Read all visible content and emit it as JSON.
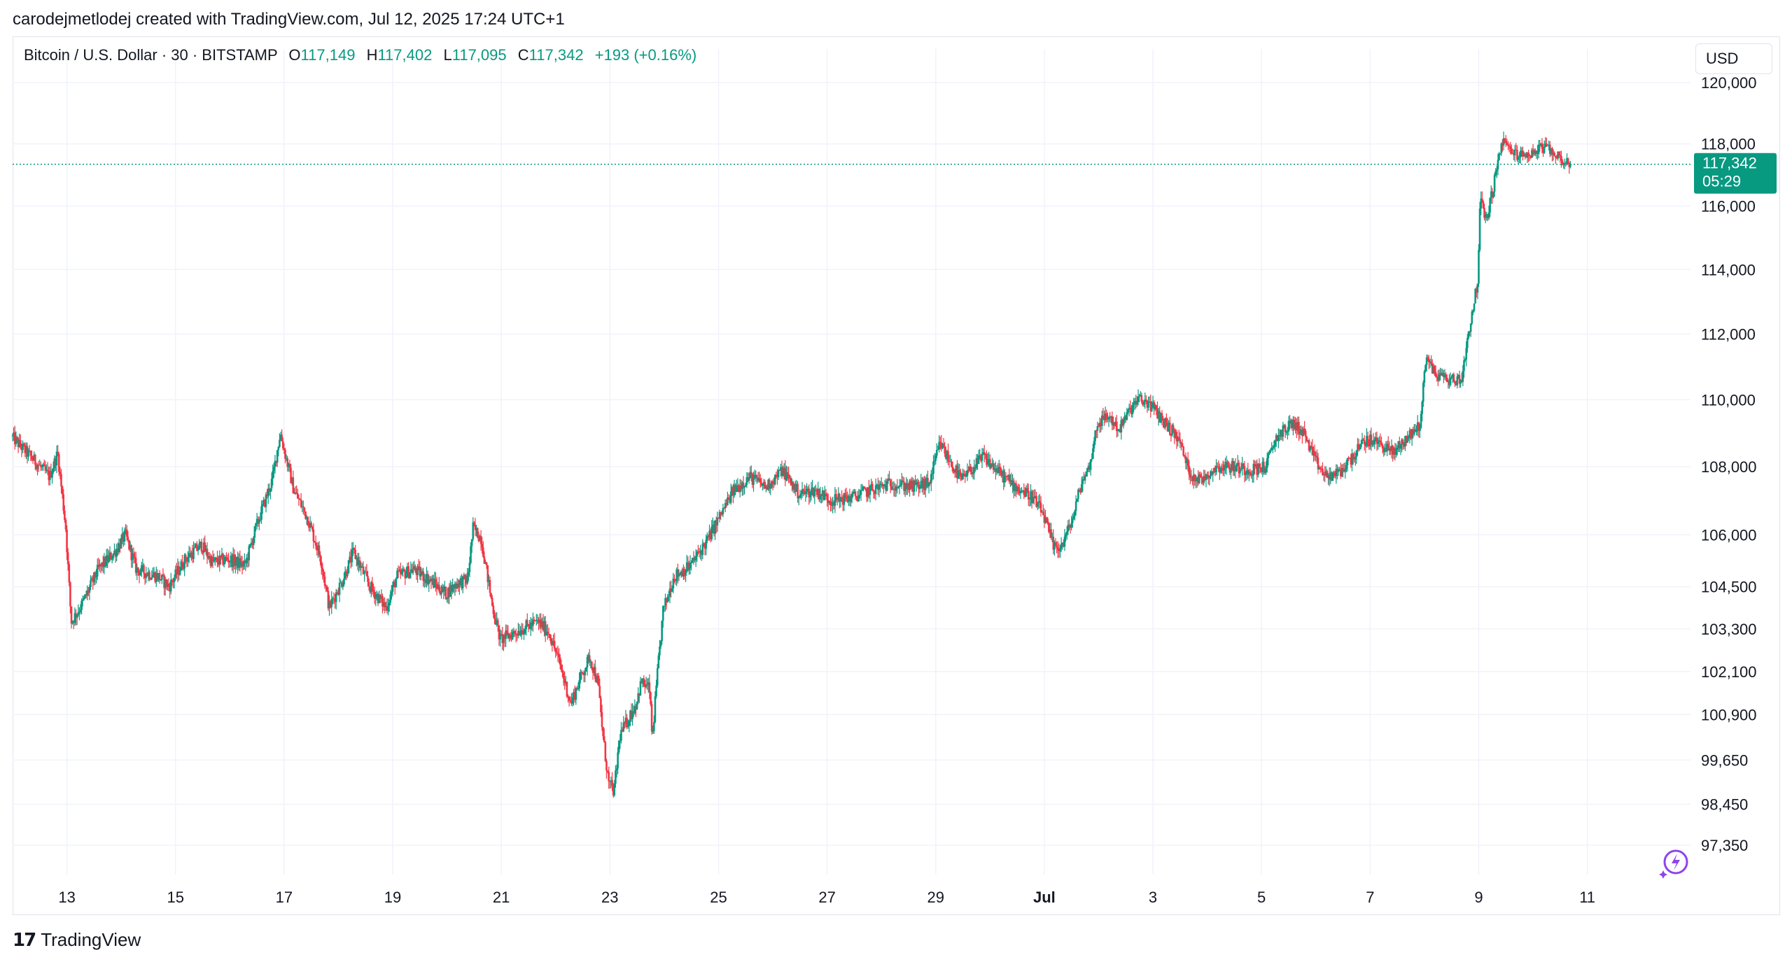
{
  "header": {
    "caption": "carodejmetlodej created with TradingView.com, Jul 12, 2025 17:24 UTC+1"
  },
  "legend": {
    "symbol": "Bitcoin / U.S. Dollar · 30 · BITSTAMP",
    "open_label": "O",
    "open": "117,149",
    "high_label": "H",
    "high": "117,402",
    "low_label": "L",
    "low": "117,095",
    "close_label": "C",
    "close": "117,342",
    "change": "+193 (+0.16%)"
  },
  "currency": "USD",
  "price_tag": {
    "price": "117,342",
    "countdown": "05:29"
  },
  "footer": {
    "brand": "TradingView"
  },
  "colors": {
    "up": "#089981",
    "down": "#f23645",
    "grid": "#f0f3fa",
    "accent": "#089981",
    "bolt": "#8e44ec"
  },
  "chart_data": {
    "type": "candlestick",
    "title": "Bitcoin / U.S. Dollar · 30 · BITSTAMP",
    "x_unit": "days since Jun 12, 2025 00:00",
    "y_scale": "log",
    "y_ticks": [
      {
        "value": 120000,
        "label": "120,000"
      },
      {
        "value": 118000,
        "label": "118,000"
      },
      {
        "value": 116000,
        "label": "116,000"
      },
      {
        "value": 114000,
        "label": "114,000"
      },
      {
        "value": 112000,
        "label": "112,000"
      },
      {
        "value": 110000,
        "label": "110,000"
      },
      {
        "value": 108000,
        "label": "108,000"
      },
      {
        "value": 106000,
        "label": "106,000"
      },
      {
        "value": 104500,
        "label": "104,500"
      },
      {
        "value": 103300,
        "label": "103,300"
      },
      {
        "value": 102100,
        "label": "102,100"
      },
      {
        "value": 100900,
        "label": "100,900"
      },
      {
        "value": 99650,
        "label": "99,650"
      },
      {
        "value": 98450,
        "label": "98,450"
      },
      {
        "value": 97350,
        "label": "97,350"
      }
    ],
    "x_ticks": [
      {
        "day": 1,
        "label": "13",
        "bold": false
      },
      {
        "day": 3,
        "label": "15",
        "bold": false
      },
      {
        "day": 5,
        "label": "17",
        "bold": false
      },
      {
        "day": 7,
        "label": "19",
        "bold": false
      },
      {
        "day": 9,
        "label": "21",
        "bold": false
      },
      {
        "day": 11,
        "label": "23",
        "bold": false
      },
      {
        "day": 13,
        "label": "25",
        "bold": false
      },
      {
        "day": 15,
        "label": "27",
        "bold": false
      },
      {
        "day": 17,
        "label": "29",
        "bold": false
      },
      {
        "day": 19,
        "label": "Jul",
        "bold": true
      },
      {
        "day": 21,
        "label": "3",
        "bold": false
      },
      {
        "day": 23,
        "label": "5",
        "bold": false
      },
      {
        "day": 25,
        "label": "7",
        "bold": false
      },
      {
        "day": 27,
        "label": "9",
        "bold": false
      },
      {
        "day": 29,
        "label": "11",
        "bold": false
      }
    ],
    "x_range": [
      0.0,
      30.9
    ],
    "last_price": 117342,
    "price_path": [
      [
        0.0,
        108900
      ],
      [
        0.35,
        108300
      ],
      [
        0.7,
        107700
      ],
      [
        0.85,
        108400
      ],
      [
        1.0,
        106200
      ],
      [
        1.1,
        103500
      ],
      [
        1.3,
        104000
      ],
      [
        1.6,
        105000
      ],
      [
        1.9,
        105500
      ],
      [
        2.1,
        106000
      ],
      [
        2.3,
        105000
      ],
      [
        2.7,
        104800
      ],
      [
        2.9,
        104500
      ],
      [
        3.2,
        105300
      ],
      [
        3.5,
        105700
      ],
      [
        3.7,
        105200
      ],
      [
        4.0,
        105300
      ],
      [
        4.3,
        105100
      ],
      [
        4.5,
        106200
      ],
      [
        4.8,
        107600
      ],
      [
        4.95,
        109000
      ],
      [
        5.05,
        108300
      ],
      [
        5.2,
        107300
      ],
      [
        5.45,
        106500
      ],
      [
        5.7,
        105300
      ],
      [
        5.85,
        103900
      ],
      [
        6.1,
        104700
      ],
      [
        6.3,
        105500
      ],
      [
        6.6,
        104500
      ],
      [
        6.9,
        103900
      ],
      [
        7.1,
        104800
      ],
      [
        7.4,
        105000
      ],
      [
        7.7,
        104700
      ],
      [
        8.0,
        104300
      ],
      [
        8.2,
        104600
      ],
      [
        8.4,
        104700
      ],
      [
        8.5,
        106200
      ],
      [
        8.65,
        105900
      ],
      [
        8.85,
        104000
      ],
      [
        9.0,
        103000
      ],
      [
        9.4,
        103300
      ],
      [
        9.7,
        103500
      ],
      [
        9.9,
        103200
      ],
      [
        10.1,
        102300
      ],
      [
        10.3,
        101200
      ],
      [
        10.5,
        102000
      ],
      [
        10.65,
        102500
      ],
      [
        10.8,
        101800
      ],
      [
        10.9,
        100200
      ],
      [
        11.0,
        99000
      ],
      [
        11.1,
        98800
      ],
      [
        11.2,
        100300
      ],
      [
        11.4,
        100900
      ],
      [
        11.5,
        101200
      ],
      [
        11.6,
        101800
      ],
      [
        11.75,
        101600
      ],
      [
        11.8,
        100200
      ],
      [
        11.9,
        102100
      ],
      [
        12.0,
        103800
      ],
      [
        12.2,
        104800
      ],
      [
        12.5,
        105100
      ],
      [
        12.8,
        105800
      ],
      [
        13.0,
        106400
      ],
      [
        13.3,
        107300
      ],
      [
        13.6,
        107700
      ],
      [
        13.9,
        107400
      ],
      [
        14.2,
        107900
      ],
      [
        14.5,
        107200
      ],
      [
        14.8,
        107300
      ],
      [
        15.1,
        107000
      ],
      [
        15.5,
        107100
      ],
      [
        15.8,
        107300
      ],
      [
        16.2,
        107500
      ],
      [
        16.6,
        107400
      ],
      [
        16.9,
        107500
      ],
      [
        17.1,
        108700
      ],
      [
        17.3,
        108100
      ],
      [
        17.5,
        107600
      ],
      [
        17.9,
        108300
      ],
      [
        18.2,
        107800
      ],
      [
        18.5,
        107400
      ],
      [
        18.8,
        107100
      ],
      [
        19.0,
        106600
      ],
      [
        19.2,
        105600
      ],
      [
        19.35,
        105700
      ],
      [
        19.55,
        106500
      ],
      [
        19.7,
        107500
      ],
      [
        19.85,
        108000
      ],
      [
        20.0,
        109300
      ],
      [
        20.2,
        109500
      ],
      [
        20.4,
        109100
      ],
      [
        20.6,
        109700
      ],
      [
        20.75,
        110000
      ],
      [
        20.95,
        109900
      ],
      [
        21.2,
        109400
      ],
      [
        21.5,
        108800
      ],
      [
        21.7,
        107800
      ],
      [
        21.9,
        107600
      ],
      [
        22.2,
        108000
      ],
      [
        22.5,
        108000
      ],
      [
        22.8,
        107900
      ],
      [
        23.1,
        108000
      ],
      [
        23.3,
        108900
      ],
      [
        23.6,
        109300
      ],
      [
        23.8,
        109000
      ],
      [
        24.0,
        108200
      ],
      [
        24.2,
        107700
      ],
      [
        24.45,
        107800
      ],
      [
        24.7,
        108300
      ],
      [
        24.95,
        108800
      ],
      [
        25.2,
        108700
      ],
      [
        25.45,
        108400
      ],
      [
        25.6,
        108700
      ],
      [
        25.8,
        109000
      ],
      [
        25.95,
        109300
      ],
      [
        26.05,
        111400
      ],
      [
        26.2,
        110800
      ],
      [
        26.5,
        110600
      ],
      [
        26.7,
        110600
      ],
      [
        26.85,
        112200
      ],
      [
        27.0,
        113600
      ],
      [
        27.05,
        116300
      ],
      [
        27.15,
        115500
      ],
      [
        27.3,
        116700
      ],
      [
        27.45,
        118100
      ],
      [
        27.6,
        117800
      ],
      [
        27.8,
        117600
      ],
      [
        28.0,
        117700
      ],
      [
        28.2,
        117900
      ],
      [
        28.4,
        117700
      ],
      [
        28.55,
        117500
      ],
      [
        28.7,
        117342
      ]
    ]
  }
}
